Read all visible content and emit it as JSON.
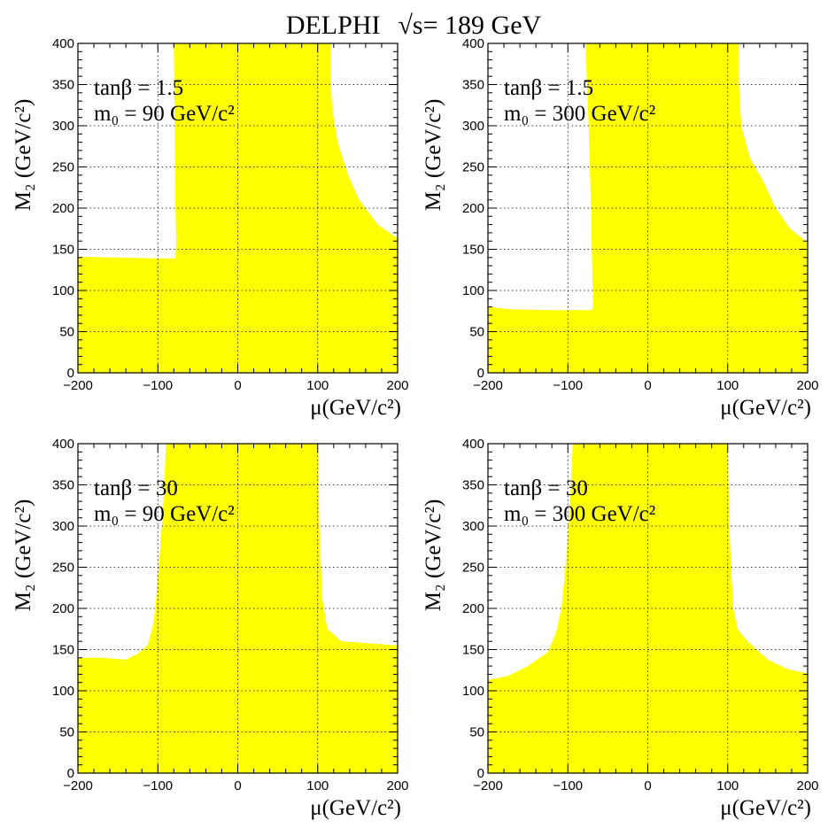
{
  "title": {
    "experiment": "DELPHI",
    "energy_symbol": "√s",
    "energy_value": "= 189 GeV"
  },
  "colors": {
    "region_fill": "#ffff00",
    "axis": "#000000",
    "grid": "#000000",
    "background": "#ffffff"
  },
  "chart_data": [
    {
      "type": "area",
      "panel": "top-left",
      "tanb_label": "tanβ = 1.5",
      "m0_label": "m₀ = 90 GeV/c²",
      "ylabel": "M₂ (GeV/c²)",
      "xlabel": "μ(GeV/c²)",
      "xlim": [
        -200,
        200
      ],
      "ylim": [
        0,
        400
      ],
      "xticks": [
        -200,
        -100,
        0,
        100,
        200
      ],
      "xtick_labels": [
        "−200",
        "−100",
        "0",
        "100",
        "200"
      ],
      "yticks": [
        0,
        50,
        100,
        150,
        200,
        250,
        300,
        350,
        400
      ],
      "ytick_labels": [
        "0",
        "50",
        "100",
        "150",
        "200",
        "250",
        "300",
        "350",
        "400"
      ],
      "grid": "dotted",
      "excluded_region_boundary": [
        [
          -200,
          0
        ],
        [
          -200,
          141
        ],
        [
          -150,
          140
        ],
        [
          -100,
          139
        ],
        [
          -78,
          139
        ],
        [
          -77,
          160
        ],
        [
          -78,
          200
        ],
        [
          -79,
          300
        ],
        [
          -80,
          400
        ],
        [
          116,
          400
        ],
        [
          116,
          360
        ],
        [
          118,
          320
        ],
        [
          125,
          280
        ],
        [
          138,
          240
        ],
        [
          152,
          210
        ],
        [
          175,
          180
        ],
        [
          200,
          163
        ],
        [
          200,
          0
        ]
      ]
    },
    {
      "type": "area",
      "panel": "top-right",
      "tanb_label": "tanβ = 1.5",
      "m0_label": "m₀ = 300 GeV/c²",
      "ylabel": "M₂ (GeV/c²)",
      "xlabel": "μ(GeV/c²)",
      "xlim": [
        -200,
        200
      ],
      "ylim": [
        0,
        400
      ],
      "xticks": [
        -200,
        -100,
        0,
        100,
        200
      ],
      "xtick_labels": [
        "−200",
        "−100",
        "0",
        "100",
        "200"
      ],
      "yticks": [
        0,
        50,
        100,
        150,
        200,
        250,
        300,
        350,
        400
      ],
      "ytick_labels": [
        "0",
        "50",
        "100",
        "150",
        "200",
        "250",
        "300",
        "350",
        "400"
      ],
      "grid": "dotted",
      "excluded_region_boundary": [
        [
          -200,
          0
        ],
        [
          -200,
          80
        ],
        [
          -170,
          77
        ],
        [
          -120,
          76
        ],
        [
          -70,
          76
        ],
        [
          -68,
          84
        ],
        [
          -69,
          100
        ],
        [
          -71,
          200
        ],
        [
          -74,
          300
        ],
        [
          -78,
          400
        ],
        [
          114,
          400
        ],
        [
          114,
          350
        ],
        [
          117,
          300
        ],
        [
          128,
          260
        ],
        [
          143,
          235
        ],
        [
          160,
          200
        ],
        [
          178,
          175
        ],
        [
          200,
          158
        ],
        [
          200,
          0
        ]
      ]
    },
    {
      "type": "area",
      "panel": "bottom-left",
      "tanb_label": "tanβ = 30",
      "m0_label": "m₀ = 90 GeV/c²",
      "ylabel": "M₂ (GeV/c²)",
      "xlabel": "μ(GeV/c²)",
      "xlim": [
        -200,
        200
      ],
      "ylim": [
        0,
        400
      ],
      "xticks": [
        -200,
        -100,
        0,
        100,
        200
      ],
      "xtick_labels": [
        "−200",
        "−100",
        "0",
        "100",
        "200"
      ],
      "yticks": [
        0,
        50,
        100,
        150,
        200,
        250,
        300,
        350,
        400
      ],
      "ytick_labels": [
        "0",
        "50",
        "100",
        "150",
        "200",
        "250",
        "300",
        "350",
        "400"
      ],
      "grid": "dotted",
      "excluded_region_boundary": [
        [
          -200,
          0
        ],
        [
          -200,
          140
        ],
        [
          -170,
          140
        ],
        [
          -140,
          138
        ],
        [
          -125,
          145
        ],
        [
          -113,
          155
        ],
        [
          -107,
          175
        ],
        [
          -103,
          200
        ],
        [
          -99,
          250
        ],
        [
          -95,
          300
        ],
        [
          -92,
          350
        ],
        [
          -90,
          400
        ],
        [
          100,
          400
        ],
        [
          101,
          350
        ],
        [
          102,
          300
        ],
        [
          104,
          250
        ],
        [
          106,
          210
        ],
        [
          112,
          175
        ],
        [
          130,
          160
        ],
        [
          160,
          158
        ],
        [
          200,
          155
        ],
        [
          200,
          0
        ]
      ]
    },
    {
      "type": "area",
      "panel": "bottom-right",
      "tanb_label": "tanβ = 30",
      "m0_label": "m₀ = 300 GeV/c²",
      "ylabel": "M₂ (GeV/c²)",
      "xlabel": "μ(GeV/c²)",
      "xlim": [
        -200,
        200
      ],
      "ylim": [
        0,
        400
      ],
      "xticks": [
        -200,
        -100,
        0,
        100,
        200
      ],
      "xtick_labels": [
        "−200",
        "−100",
        "0",
        "100",
        "200"
      ],
      "yticks": [
        0,
        50,
        100,
        150,
        200,
        250,
        300,
        350,
        400
      ],
      "ytick_labels": [
        "0",
        "50",
        "100",
        "150",
        "200",
        "250",
        "300",
        "350",
        "400"
      ],
      "grid": "dotted",
      "excluded_region_boundary": [
        [
          -200,
          0
        ],
        [
          -200,
          113
        ],
        [
          -175,
          118
        ],
        [
          -150,
          130
        ],
        [
          -125,
          147
        ],
        [
          -115,
          170
        ],
        [
          -108,
          200
        ],
        [
          -103,
          250
        ],
        [
          -99,
          300
        ],
        [
          -96,
          350
        ],
        [
          -94,
          400
        ],
        [
          100,
          400
        ],
        [
          101,
          350
        ],
        [
          102,
          300
        ],
        [
          104,
          250
        ],
        [
          107,
          200
        ],
        [
          112,
          175
        ],
        [
          125,
          160
        ],
        [
          150,
          138
        ],
        [
          175,
          126
        ],
        [
          200,
          121
        ],
        [
          200,
          0
        ]
      ]
    }
  ]
}
